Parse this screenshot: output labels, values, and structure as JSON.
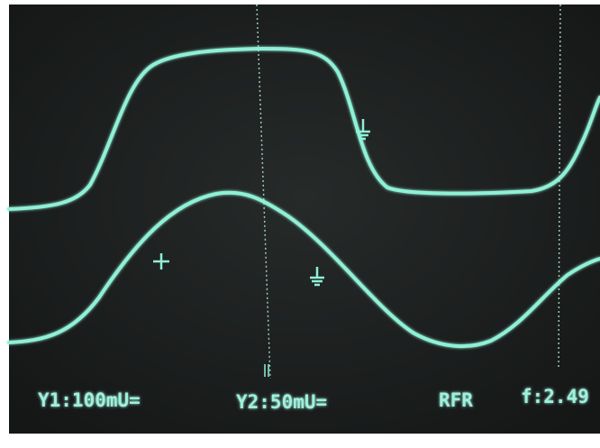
{
  "readout": {
    "channel_1": "Y1:100mU=",
    "channel_2": "Y2:50mU=",
    "mode": "RFR",
    "frequency": "f:2.49"
  }
}
